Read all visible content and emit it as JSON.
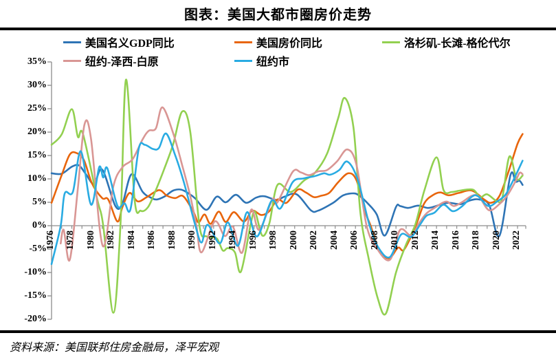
{
  "header": {
    "title": "图表：美国大都市圈房价走势"
  },
  "footer": {
    "source": "资料来源：美国联邦住房金融局，泽平宏观"
  },
  "chart_data": {
    "type": "line",
    "title": "图表：美国大都市圈房价走势",
    "xlabel": "",
    "ylabel": "",
    "grid": "zero-baseline-only",
    "legend_position": "top-two-rows",
    "axis_color": "#8C8C8C",
    "x_axis": {
      "min": 1976,
      "max": 2023,
      "minor_tick_years": 1,
      "label_tick_years": 2,
      "tick_labels": [
        "1976",
        "1978",
        "1980",
        "1982",
        "1984",
        "1986",
        "1988",
        "1990",
        "1992",
        "1994",
        "1996",
        "1998",
        "2000",
        "2002",
        "2004",
        "2006",
        "2008",
        "2010",
        "2012",
        "2014",
        "2016",
        "2018",
        "2020",
        "2022"
      ]
    },
    "y_axis": {
      "unit": "%",
      "min": -20,
      "max": 35,
      "step": 5,
      "tick_labels": [
        "35%",
        "30%",
        "25%",
        "20%",
        "15%",
        "10%",
        "5%",
        "0%",
        "-5%",
        "-10%",
        "-15%",
        "-20%"
      ]
    },
    "series": [
      {
        "name": "美国名义GDP同比",
        "color": "#2E74B5",
        "points": [
          [
            1976,
            11.2
          ],
          [
            1977,
            11.1
          ],
          [
            1978,
            12.6
          ],
          [
            1978.7,
            12.9
          ],
          [
            1979.4,
            11.0
          ],
          [
            1980.2,
            8.9
          ],
          [
            1981,
            12.0
          ],
          [
            1982.3,
            4.2
          ],
          [
            1983,
            4.8
          ],
          [
            1983.9,
            11.0
          ],
          [
            1985,
            7.2
          ],
          [
            1985.8,
            6.0
          ],
          [
            1986.4,
            5.6
          ],
          [
            1987.2,
            6.3
          ],
          [
            1988,
            7.5
          ],
          [
            1988.8,
            7.7
          ],
          [
            1989.6,
            6.8
          ],
          [
            1990.2,
            5.8
          ],
          [
            1991.3,
            3.4
          ],
          [
            1992.3,
            6.2
          ],
          [
            1993.2,
            5.0
          ],
          [
            1994.2,
            6.6
          ],
          [
            1995.2,
            4.9
          ],
          [
            1996.2,
            6.0
          ],
          [
            1997,
            6.3
          ],
          [
            1998.2,
            5.5
          ],
          [
            1999,
            6.2
          ],
          [
            2000.2,
            6.7
          ],
          [
            2001.6,
            3.3
          ],
          [
            2002.3,
            3.2
          ],
          [
            2003.8,
            4.9
          ],
          [
            2004.8,
            6.5
          ],
          [
            2005.9,
            6.9
          ],
          [
            2006.5,
            6.2
          ],
          [
            2007.2,
            4.8
          ],
          [
            2008.1,
            2.4
          ],
          [
            2008.9,
            -2.1
          ],
          [
            2010,
            4.0
          ],
          [
            2010.4,
            4.2
          ],
          [
            2011.2,
            3.8
          ],
          [
            2012.2,
            4.3
          ],
          [
            2013.2,
            3.8
          ],
          [
            2014.4,
            4.5
          ],
          [
            2015.2,
            4.9
          ],
          [
            2016.4,
            4.6
          ],
          [
            2017.3,
            5.4
          ],
          [
            2018.2,
            5.6
          ],
          [
            2019.2,
            4.4
          ],
          [
            2020.2,
            -2.2
          ],
          [
            2021.3,
            10.8
          ],
          [
            2021.8,
            9.4
          ],
          [
            2022.2,
            9.6
          ],
          [
            2022.5,
            8.7
          ]
        ]
      },
      {
        "name": "美国房价同比",
        "color": "#E8650C",
        "points": [
          [
            1976,
            4.9
          ],
          [
            1977,
            10.8
          ],
          [
            1977.8,
            15.2
          ],
          [
            1978.5,
            15.5
          ],
          [
            1979.2,
            14.0
          ],
          [
            1980,
            9.0
          ],
          [
            1981,
            5.9
          ],
          [
            1981.6,
            5.6
          ],
          [
            1982.5,
            0.9
          ],
          [
            1983,
            4.0
          ],
          [
            1983.7,
            7.0
          ],
          [
            1984.5,
            5.2
          ],
          [
            1985.4,
            6.1
          ],
          [
            1986.6,
            7.6
          ],
          [
            1987.4,
            6.4
          ],
          [
            1988.2,
            5.9
          ],
          [
            1989,
            6.3
          ],
          [
            1990,
            3.0
          ],
          [
            1990.5,
            0.7
          ],
          [
            1991.1,
            2.4
          ],
          [
            1991.7,
            0.4
          ],
          [
            1992.5,
            3.0
          ],
          [
            1993.2,
            0.8
          ],
          [
            1994,
            2.9
          ],
          [
            1995,
            0.9
          ],
          [
            1995.8,
            3.2
          ],
          [
            1996.7,
            2.3
          ],
          [
            1997.5,
            3.1
          ],
          [
            1998.3,
            5.6
          ],
          [
            1999.2,
            4.9
          ],
          [
            2000.3,
            7.7
          ],
          [
            2001.1,
            7.1
          ],
          [
            2001.9,
            6.1
          ],
          [
            2002.6,
            6.4
          ],
          [
            2003.4,
            7.0
          ],
          [
            2004.3,
            9.3
          ],
          [
            2005.3,
            11.2
          ],
          [
            2006.1,
            9.7
          ],
          [
            2007,
            2.8
          ],
          [
            2007.5,
            0
          ],
          [
            2008.3,
            -5.0
          ],
          [
            2009.3,
            -7.0
          ],
          [
            2010.2,
            -4.7
          ],
          [
            2010.8,
            -5.1
          ],
          [
            2011.9,
            -0.3
          ],
          [
            2012.8,
            4.8
          ],
          [
            2013.7,
            6.6
          ],
          [
            2014.4,
            7.1
          ],
          [
            2015.2,
            6.5
          ],
          [
            2016.2,
            7.0
          ],
          [
            2017.5,
            7.5
          ],
          [
            2018.7,
            5.6
          ],
          [
            2019.4,
            4.9
          ],
          [
            2020.2,
            6.3
          ],
          [
            2021.1,
            11.5
          ],
          [
            2022,
            17.5
          ],
          [
            2022.5,
            19.6
          ]
        ]
      },
      {
        "name": "洛杉矶-长滩-格伦代尔",
        "color": "#92D050",
        "points": [
          [
            1976,
            17.3
          ],
          [
            1977,
            19.5
          ],
          [
            1978,
            24.9
          ],
          [
            1978.6,
            19.0
          ],
          [
            1979.1,
            19.6
          ],
          [
            1980.5,
            5.8
          ],
          [
            1981.1,
            0
          ],
          [
            1982.1,
            -18.6
          ],
          [
            1982.8,
            0
          ],
          [
            1983.35,
            31.2
          ],
          [
            1984.2,
            5.5
          ],
          [
            1984.8,
            3.2
          ],
          [
            1985.5,
            3.9
          ],
          [
            1986.2,
            7.1
          ],
          [
            1987.1,
            12.0
          ],
          [
            1988,
            17.4
          ],
          [
            1988.9,
            24.4
          ],
          [
            1989.7,
            20.0
          ],
          [
            1990.6,
            0
          ],
          [
            1991.3,
            -2.3
          ],
          [
            1992.3,
            -2.7
          ],
          [
            1992.9,
            -5.3
          ],
          [
            1993.4,
            -4.8
          ],
          [
            1994.1,
            -5.7
          ],
          [
            1994.7,
            -9.8
          ],
          [
            1995.7,
            0.8
          ],
          [
            1996.1,
            2.9
          ],
          [
            1996.8,
            -2.1
          ],
          [
            1997.5,
            0.5
          ],
          [
            1998.3,
            8.7
          ],
          [
            1999.6,
            7.2
          ],
          [
            2000.9,
            9.6
          ],
          [
            2002,
            11.3
          ],
          [
            2003.2,
            15.4
          ],
          [
            2004.3,
            23.0
          ],
          [
            2004.95,
            27.3
          ],
          [
            2005.8,
            21.0
          ],
          [
            2006.5,
            2.5
          ],
          [
            2007.3,
            -7.0
          ],
          [
            2008.2,
            -15.5
          ],
          [
            2009,
            -18.8
          ],
          [
            2010,
            -10.0
          ],
          [
            2011,
            -4.0
          ],
          [
            2011.9,
            0.2
          ],
          [
            2012.8,
            7.5
          ],
          [
            2014,
            14.6
          ],
          [
            2014.7,
            7.6
          ],
          [
            2015.5,
            7.2
          ],
          [
            2016.3,
            7.5
          ],
          [
            2017.6,
            7.7
          ],
          [
            2018.3,
            6.1
          ],
          [
            2019,
            6.7
          ],
          [
            2020,
            5.2
          ],
          [
            2020.5,
            6.0
          ],
          [
            2021.2,
            14.8
          ],
          [
            2021.9,
            10.0
          ],
          [
            2022.5,
            10.7
          ]
        ]
      },
      {
        "name": "纽约-泽西-白原",
        "color": "#D99694",
        "points": [
          [
            1976.9,
            -3.8
          ],
          [
            1977.2,
            -0.9
          ],
          [
            1977.8,
            -7.3
          ],
          [
            1978.6,
            8.0
          ],
          [
            1979.25,
            21.6
          ],
          [
            1979.9,
            18.5
          ],
          [
            1981.05,
            -4.3
          ],
          [
            1982.1,
            8.4
          ],
          [
            1983,
            12.5
          ],
          [
            1984,
            14.2
          ],
          [
            1985,
            18.5
          ],
          [
            1985.6,
            20.3
          ],
          [
            1986.3,
            20.8
          ],
          [
            1986.95,
            25.3
          ],
          [
            1988,
            19.8
          ],
          [
            1988.9,
            12.9
          ],
          [
            1989.7,
            6.3
          ],
          [
            1990.3,
            0
          ],
          [
            1990.8,
            -5.7
          ],
          [
            1992.1,
            0.9
          ],
          [
            1993.1,
            -2.2
          ],
          [
            1993.9,
            -0.2
          ],
          [
            1994.8,
            -5.8
          ],
          [
            1995.7,
            3.4
          ],
          [
            1996.5,
            -0.9
          ],
          [
            1997.8,
            5.6
          ],
          [
            1998.3,
            5.0
          ],
          [
            1999.8,
            11.5
          ],
          [
            2000.6,
            11.4
          ],
          [
            2001.4,
            10.8
          ],
          [
            2002.3,
            11.6
          ],
          [
            2003.2,
            11.9
          ],
          [
            2004.2,
            13.8
          ],
          [
            2005.2,
            16.3
          ],
          [
            2006.1,
            13.0
          ],
          [
            2007.1,
            0
          ],
          [
            2008.1,
            -4.8
          ],
          [
            2009.4,
            -7.3
          ],
          [
            2010.4,
            -0.9
          ],
          [
            2011.5,
            -2.1
          ],
          [
            2012.3,
            0.6
          ],
          [
            2013,
            2.6
          ],
          [
            2013.8,
            3.8
          ],
          [
            2014.6,
            4.9
          ],
          [
            2015.1,
            5.1
          ],
          [
            2015.7,
            4.2
          ],
          [
            2016.5,
            5.0
          ],
          [
            2017.5,
            6.4
          ],
          [
            2018.2,
            6.2
          ],
          [
            2019.2,
            3.3
          ],
          [
            2020.3,
            4.8
          ],
          [
            2021,
            6.5
          ],
          [
            2021.8,
            9.5
          ],
          [
            2022.2,
            11.3
          ],
          [
            2022.5,
            11.0
          ]
        ]
      },
      {
        "name": "纽约市",
        "color": "#29ABE2",
        "points": [
          [
            1976,
            -8.2
          ],
          [
            1976.9,
            0
          ],
          [
            1977.3,
            6.9
          ],
          [
            1978.1,
            7.2
          ],
          [
            1978.9,
            15.9
          ],
          [
            1979.9,
            4.5
          ],
          [
            1980.7,
            12.5
          ],
          [
            1981.1,
            10.3
          ],
          [
            1981.5,
            12.3
          ],
          [
            1982.5,
            4.3
          ],
          [
            1983.2,
            4.8
          ],
          [
            1983.8,
            3.6
          ],
          [
            1984.6,
            16.4
          ],
          [
            1985.2,
            17.3
          ],
          [
            1986,
            16.4
          ],
          [
            1986.6,
            16.6
          ],
          [
            1987.3,
            19.7
          ],
          [
            1988.2,
            15.1
          ],
          [
            1989.1,
            9.0
          ],
          [
            1990.2,
            0
          ],
          [
            1990.8,
            -3.6
          ],
          [
            1991.4,
            0.2
          ],
          [
            1992.6,
            -3.8
          ],
          [
            1993.4,
            0.7
          ],
          [
            1994.4,
            -4.3
          ],
          [
            1995.3,
            2.9
          ],
          [
            1996.3,
            -2.3
          ],
          [
            1997.7,
            5.3
          ],
          [
            1998.6,
            3.7
          ],
          [
            1999.8,
            9.3
          ],
          [
            2000.9,
            10.1
          ],
          [
            2002,
            10.6
          ],
          [
            2002.9,
            11.2
          ],
          [
            2003.5,
            10.9
          ],
          [
            2004.4,
            11.9
          ],
          [
            2005.2,
            13.7
          ],
          [
            2006.2,
            10.0
          ],
          [
            2007.4,
            0
          ],
          [
            2008.3,
            -4.8
          ],
          [
            2009.4,
            -6.7
          ],
          [
            2010.5,
            -1.9
          ],
          [
            2011.5,
            -2.4
          ],
          [
            2012.4,
            0.3
          ],
          [
            2013,
            2.1
          ],
          [
            2013.8,
            2.8
          ],
          [
            2014.7,
            4.5
          ],
          [
            2015.6,
            3.1
          ],
          [
            2016.5,
            4.1
          ],
          [
            2017.5,
            6.2
          ],
          [
            2018.1,
            6.3
          ],
          [
            2019.1,
            4.2
          ],
          [
            2020,
            5.2
          ],
          [
            2020.8,
            6.6
          ],
          [
            2021.6,
            9.8
          ],
          [
            2022.5,
            13.9
          ]
        ]
      }
    ]
  }
}
